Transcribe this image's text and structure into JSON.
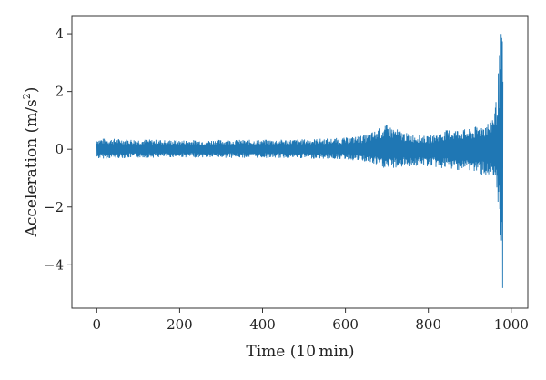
{
  "chart_data": {
    "type": "line",
    "title": "",
    "xlabel": "Time (10 min)",
    "ylabel_main": "Acceleration (m/s",
    "ylabel_sup": "2",
    "ylabel_close": ")",
    "xlim": [
      -60,
      1040
    ],
    "ylim": [
      -5.5,
      4.6
    ],
    "x_ticks": [
      0,
      200,
      400,
      600,
      800,
      1000
    ],
    "y_ticks": [
      4,
      2,
      0,
      -2,
      -4
    ],
    "y_tick_labels": [
      "4",
      "2",
      "0",
      "−2",
      "−4"
    ],
    "line_color": "#1f77b4",
    "grid": false,
    "legend": "none",
    "series": [
      {
        "x_start": 0,
        "x_end": 980,
        "envelope": [
          {
            "x": 0,
            "lo": -0.33,
            "hi": 0.38
          },
          {
            "x": 100,
            "lo": -0.3,
            "hi": 0.35
          },
          {
            "x": 200,
            "lo": -0.28,
            "hi": 0.32
          },
          {
            "x": 300,
            "lo": -0.3,
            "hi": 0.33
          },
          {
            "x": 400,
            "lo": -0.3,
            "hi": 0.33
          },
          {
            "x": 500,
            "lo": -0.32,
            "hi": 0.35
          },
          {
            "x": 600,
            "lo": -0.35,
            "hi": 0.4
          },
          {
            "x": 650,
            "lo": -0.45,
            "hi": 0.5
          },
          {
            "x": 700,
            "lo": -0.7,
            "hi": 0.85
          },
          {
            "x": 750,
            "lo": -0.6,
            "hi": 0.55
          },
          {
            "x": 800,
            "lo": -0.6,
            "hi": 0.45
          },
          {
            "x": 850,
            "lo": -0.7,
            "hi": 0.7
          },
          {
            "x": 900,
            "lo": -0.75,
            "hi": 0.7
          },
          {
            "x": 950,
            "lo": -1.0,
            "hi": 1.0
          },
          {
            "x": 965,
            "lo": -1.5,
            "hi": 1.8
          },
          {
            "x": 972,
            "lo": -2.8,
            "hi": 3.4
          },
          {
            "x": 977,
            "lo": -4.5,
            "hi": 4.3
          },
          {
            "x": 980,
            "lo": -5.0,
            "hi": 3.5
          }
        ]
      }
    ]
  }
}
